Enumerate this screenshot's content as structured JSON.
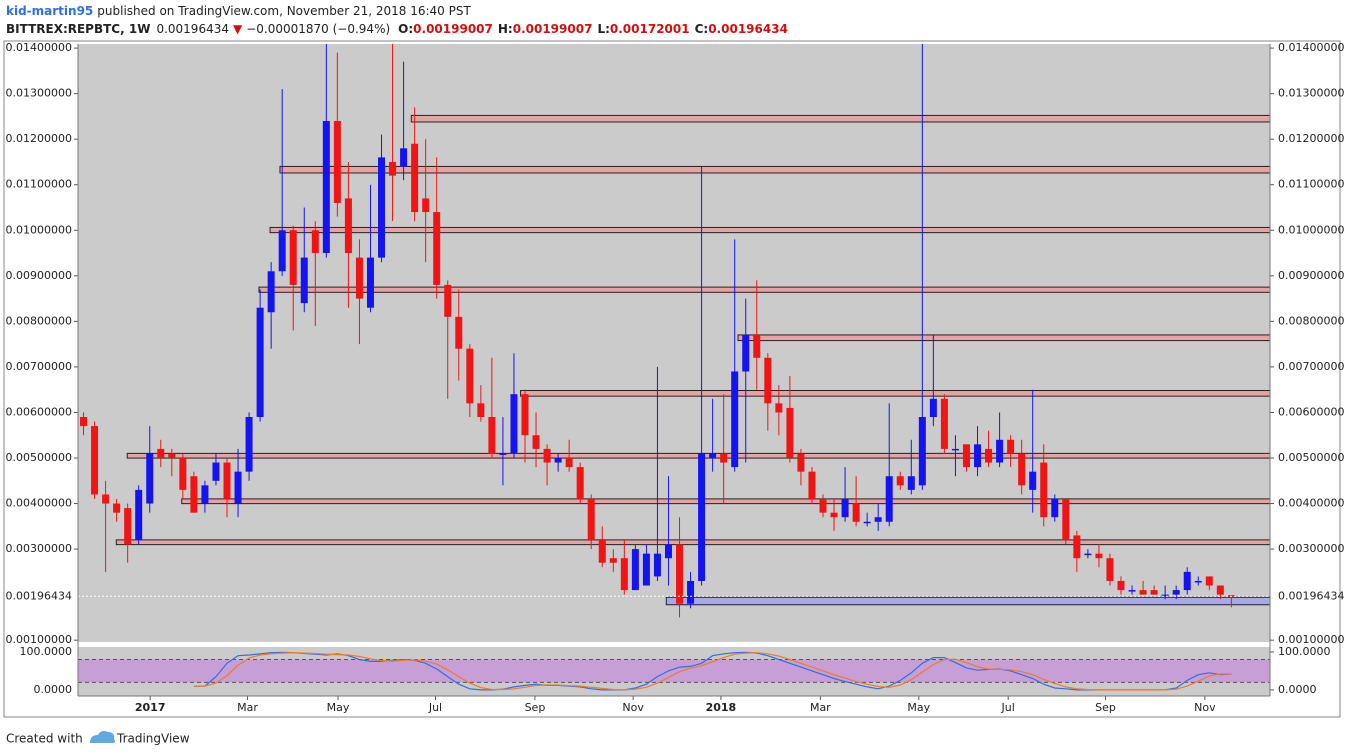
{
  "header": {
    "author": "kid-martin95",
    "published": "published on TradingView.com, November 21, 2018 16:40 PST",
    "symbol": "BITTREX:REPBTC, 1W",
    "change": "−0.00001870 (−0.94%)",
    "ohlc": [
      {
        "key": "O:",
        "value": "0.00199007"
      },
      {
        "key": "H:",
        "value": "0.00199007"
      },
      {
        "key": "L:",
        "value": "0.00172001"
      },
      {
        "key": "C:",
        "value": "0.00196434"
      }
    ]
  },
  "footer": {
    "created": "Created with",
    "brand": "TradingView"
  },
  "chart_data": {
    "type": "candlestick",
    "up_color": "#1414f0",
    "down_color": "#f01414",
    "last_price": {
      "value": 0.00196434,
      "label": "0.00196434"
    },
    "ylim": [
      0.00096,
      0.01409
    ],
    "xlim": [
      -0.5,
      107.5
    ],
    "yticks": [
      {
        "value": 0.014,
        "label": "0.01400000"
      },
      {
        "value": 0.013,
        "label": "0.01300000"
      },
      {
        "value": 0.012,
        "label": "0.01200000"
      },
      {
        "value": 0.011,
        "label": "0.01100000"
      },
      {
        "value": 0.01,
        "label": "0.01000000"
      },
      {
        "value": 0.009,
        "label": "0.00900000"
      },
      {
        "value": 0.008,
        "label": "0.00800000"
      },
      {
        "value": 0.007,
        "label": "0.00700000"
      },
      {
        "value": 0.006,
        "label": "0.00600000"
      },
      {
        "value": 0.005,
        "label": "0.00500000"
      },
      {
        "value": 0.004,
        "label": "0.00400000"
      },
      {
        "value": 0.003,
        "label": "0.00300000"
      },
      {
        "value": 0.001,
        "label": "0.00100000"
      }
    ],
    "xticks": [
      {
        "value": 6.04,
        "label": "2017"
      },
      {
        "value": 14.86,
        "label": "Mar"
      },
      {
        "value": 23.06,
        "label": "May"
      },
      {
        "value": 31.89,
        "label": "Jul"
      },
      {
        "value": 40.9,
        "label": "Sep"
      },
      {
        "value": 49.8,
        "label": "Nov"
      },
      {
        "value": 57.75,
        "label": "2018"
      },
      {
        "value": 66.76,
        "label": "Mar"
      },
      {
        "value": 75.68,
        "label": "May"
      },
      {
        "value": 83.78,
        "label": "Jul"
      },
      {
        "value": 92.6,
        "label": "Sep"
      },
      {
        "value": 101.6,
        "label": "Nov"
      }
    ],
    "open": [
      0.0059,
      0.0057,
      0.0042,
      0.004,
      0.0039,
      0.0032,
      0.004,
      0.0052,
      0.0051,
      0.005,
      0.0046,
      0.004,
      0.0045,
      0.0049,
      0.004,
      0.0047,
      0.0059,
      0.0082,
      0.0091,
      0.01,
      0.0084,
      0.01,
      0.0095,
      0.0124,
      0.0107,
      0.0094,
      0.0083,
      0.0094,
      0.0115,
      0.0114,
      0.0119,
      0.0107,
      0.0104,
      0.0088,
      0.0081,
      0.0074,
      0.0062,
      0.0059,
      0.0051,
      0.0051,
      0.0064,
      0.0055,
      0.0052,
      0.0049,
      0.005,
      0.0048,
      0.0041,
      0.0032,
      0.0028,
      0.0028,
      0.0021,
      0.0022,
      0.0024,
      0.0028,
      0.0031,
      0.0018,
      0.0023,
      0.005,
      0.0051,
      0.0048,
      0.0069,
      0.0077,
      0.0072,
      0.0062,
      0.0061,
      0.0051,
      0.0047,
      0.0041,
      0.0038,
      0.0037,
      0.004,
      0.0036,
      0.0036,
      0.0036,
      0.0046,
      0.0043,
      0.0044,
      0.0059,
      0.0063,
      0.0052,
      0.0053,
      0.0048,
      0.0052,
      0.0049,
      0.0054,
      0.0051,
      0.0043,
      0.0049,
      0.0037,
      0.0041,
      0.0033,
      0.0029,
      0.0029,
      0.0028,
      0.0023,
      0.0021,
      0.0021,
      0.0021,
      0.002,
      0.002,
      0.0021,
      0.0023,
      0.0024,
      0.0022,
      0.00199007
    ],
    "high": [
      0.006,
      0.0058,
      0.0045,
      0.0041,
      0.004,
      0.0044,
      0.0057,
      0.0054,
      0.0052,
      0.0051,
      0.0047,
      0.0045,
      0.0051,
      0.005,
      0.0052,
      0.006,
      0.0087,
      0.0093,
      0.0131,
      0.0101,
      0.0105,
      0.0102,
      0.0145,
      0.0139,
      0.0115,
      0.0098,
      0.011,
      0.0121,
      0.0145,
      0.0137,
      0.0127,
      0.012,
      0.0116,
      0.0089,
      0.0087,
      0.0075,
      0.0066,
      0.0072,
      0.0059,
      0.0073,
      0.0065,
      0.006,
      0.0053,
      0.0051,
      0.0054,
      0.0049,
      0.0042,
      0.0035,
      0.003,
      0.0032,
      0.0031,
      0.0031,
      0.007,
      0.0046,
      0.0037,
      0.0025,
      0.0114,
      0.0063,
      0.0064,
      0.0098,
      0.0085,
      0.0089,
      0.0073,
      0.0066,
      0.0068,
      0.0052,
      0.0048,
      0.0042,
      0.0041,
      0.0048,
      0.0046,
      0.0038,
      0.004,
      0.0062,
      0.0047,
      0.0054,
      0.015,
      0.0077,
      0.0064,
      0.0055,
      0.0053,
      0.0057,
      0.0056,
      0.006,
      0.0055,
      0.0054,
      0.0065,
      0.0053,
      0.0042,
      0.0041,
      0.0034,
      0.003,
      0.0031,
      0.0029,
      0.0024,
      0.0022,
      0.0023,
      0.0022,
      0.0022,
      0.0022,
      0.0026,
      0.0024,
      0.0024,
      0.0022,
      0.00199007
    ],
    "low": [
      0.0055,
      0.0041,
      0.0025,
      0.0036,
      0.0027,
      0.0031,
      0.0038,
      0.0048,
      0.0046,
      0.0041,
      0.0038,
      0.0038,
      0.0044,
      0.0037,
      0.0037,
      0.0045,
      0.0058,
      0.0074,
      0.009,
      0.0078,
      0.0082,
      0.0079,
      0.0094,
      0.0103,
      0.0083,
      0.0075,
      0.0082,
      0.0093,
      0.0102,
      0.0111,
      0.0102,
      0.0093,
      0.0085,
      0.0063,
      0.0067,
      0.0059,
      0.0058,
      0.005,
      0.0044,
      0.005,
      0.0049,
      0.0048,
      0.0044,
      0.0047,
      0.0047,
      0.004,
      0.003,
      0.0026,
      0.0025,
      0.002,
      0.0021,
      0.0022,
      0.0023,
      0.0022,
      0.0015,
      0.0017,
      0.0022,
      0.0047,
      0.004,
      0.0047,
      0.0049,
      0.0065,
      0.0056,
      0.0055,
      0.0049,
      0.0044,
      0.004,
      0.0037,
      0.0034,
      0.0036,
      0.0035,
      0.0035,
      0.0034,
      0.0035,
      0.0043,
      0.0042,
      0.0043,
      0.0057,
      0.0051,
      0.0046,
      0.0047,
      0.0046,
      0.0048,
      0.0048,
      0.0048,
      0.0042,
      0.0038,
      0.0035,
      0.0036,
      0.0031,
      0.0025,
      0.0028,
      0.0026,
      0.0022,
      0.002,
      0.002,
      0.002,
      0.002,
      0.0019,
      0.0019,
      0.002,
      0.0022,
      0.0021,
      0.0019,
      0.00172001
    ],
    "close": [
      0.0057,
      0.0042,
      0.004,
      0.0038,
      0.0031,
      0.0043,
      0.0051,
      0.005,
      0.005,
      0.0043,
      0.0038,
      0.0044,
      0.0049,
      0.0041,
      0.0047,
      0.0059,
      0.0083,
      0.0091,
      0.01,
      0.0088,
      0.0094,
      0.0095,
      0.0124,
      0.0106,
      0.0095,
      0.0085,
      0.0094,
      0.0116,
      0.0112,
      0.0118,
      0.0104,
      0.0104,
      0.0088,
      0.0081,
      0.0074,
      0.0062,
      0.0059,
      0.0051,
      0.0051,
      0.0064,
      0.0055,
      0.0052,
      0.0049,
      0.005,
      0.0048,
      0.0041,
      0.0032,
      0.0027,
      0.0027,
      0.0021,
      0.003,
      0.0029,
      0.0029,
      0.0031,
      0.0018,
      0.0023,
      0.0051,
      0.0051,
      0.0049,
      0.0069,
      0.0077,
      0.0072,
      0.0062,
      0.006,
      0.005,
      0.0047,
      0.0041,
      0.0038,
      0.0037,
      0.0041,
      0.0036,
      0.0036,
      0.0037,
      0.0046,
      0.0044,
      0.0046,
      0.0059,
      0.0063,
      0.0052,
      0.0052,
      0.0048,
      0.0053,
      0.0049,
      0.0054,
      0.0051,
      0.0044,
      0.0047,
      0.0037,
      0.0041,
      0.0032,
      0.0028,
      0.0029,
      0.0028,
      0.0023,
      0.0021,
      0.0021,
      0.002,
      0.002,
      0.002,
      0.0021,
      0.0025,
      0.0023,
      0.0022,
      0.002,
      0.00196434
    ],
    "zones": [
      {
        "y": [
          0.0124,
          0.0125
        ],
        "x0": 29.7,
        "color": "#e6a3a3"
      },
      {
        "y": [
          0.01128,
          0.01138
        ],
        "x0": 17.8,
        "color": "#e6a3a3"
      },
      {
        "y": [
          0.00997,
          0.01004
        ],
        "x0": 16.9,
        "color": "#e6a3a3"
      },
      {
        "y": [
          0.00866,
          0.00873
        ],
        "x0": 15.9,
        "color": "#e6a3a3"
      },
      {
        "y": [
          0.0076,
          0.00768
        ],
        "x0": 59.3,
        "color": "#e6a3a3"
      },
      {
        "y": [
          0.00638,
          0.00646
        ],
        "x0": 39.6,
        "color": "#e6a3a3"
      },
      {
        "y": [
          0.00502,
          0.00508
        ],
        "x0": 3.96,
        "color": "#e6a3a3"
      },
      {
        "y": [
          0.00402,
          0.00408
        ],
        "x0": 8.9,
        "color": "#e6a3a3"
      },
      {
        "y": [
          0.00312,
          0.00318
        ],
        "x0": 2.97,
        "color": "#e6a3a3"
      },
      {
        "y": [
          0.0018,
          0.00192
        ],
        "x0": 52.8,
        "color": "#a8a8e6"
      }
    ],
    "indicator": {
      "ylim": [
        -16,
        113
      ],
      "bands": [
        20,
        80
      ],
      "band_color": "#c79fd6",
      "yticks": [
        {
          "value": 100,
          "label": "100.0000"
        },
        {
          "value": 0,
          "label": "0.0000"
        }
      ],
      "series": [
        {
          "color": "#2f6fe6",
          "values": [
            null,
            null,
            null,
            null,
            null,
            null,
            null,
            null,
            null,
            null,
            10,
            10,
            35,
            70,
            90,
            92,
            95,
            98,
            99,
            98,
            96,
            94,
            92,
            95,
            90,
            80,
            75,
            75,
            78,
            80,
            78,
            70,
            55,
            35,
            15,
            3,
            0,
            0,
            2,
            8,
            12,
            15,
            12,
            12,
            10,
            8,
            3,
            0,
            0,
            0,
            5,
            15,
            35,
            50,
            60,
            62,
            70,
            90,
            95,
            98,
            99,
            97,
            90,
            80,
            70,
            60,
            50,
            40,
            30,
            22,
            15,
            8,
            3,
            10,
            25,
            45,
            70,
            85,
            85,
            72,
            58,
            52,
            54,
            55,
            50,
            40,
            30,
            15,
            5,
            3,
            0,
            0,
            0,
            0,
            0,
            0,
            0,
            0,
            0,
            5,
            25,
            40,
            45,
            40,
            42
          ]
        },
        {
          "color": "#f07a2a",
          "values": [
            null,
            null,
            null,
            null,
            null,
            null,
            null,
            null,
            null,
            null,
            10,
            10,
            18,
            38,
            65,
            84,
            92,
            95,
            97,
            98,
            97,
            96,
            94,
            93,
            92,
            88,
            82,
            77,
            76,
            78,
            79,
            76,
            68,
            53,
            35,
            18,
            6,
            1,
            1,
            3,
            7,
            12,
            13,
            13,
            11,
            10,
            7,
            4,
            1,
            0,
            2,
            7,
            18,
            33,
            48,
            57,
            64,
            74,
            85,
            94,
            97,
            98,
            95,
            89,
            80,
            70,
            60,
            50,
            40,
            31,
            22,
            15,
            9,
            7,
            13,
            27,
            47,
            67,
            80,
            81,
            72,
            61,
            55,
            54,
            53,
            48,
            40,
            28,
            17,
            8,
            3,
            1,
            0,
            0,
            0,
            0,
            0,
            0,
            0,
            2,
            10,
            23,
            37,
            42,
            42
          ]
        }
      ]
    }
  }
}
